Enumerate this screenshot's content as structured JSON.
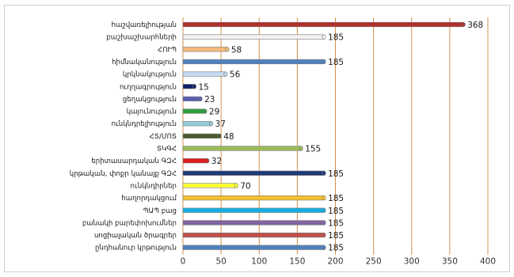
{
  "chart_data": {
    "type": "bar",
    "orientation": "horizontal",
    "title": "",
    "xlabel": "",
    "ylabel": "",
    "xlim": [
      0,
      400
    ],
    "x_ticks": [
      "0",
      "50",
      "100",
      "150",
      "200",
      "250",
      "300",
      "350",
      "400"
    ],
    "grid": "vertical",
    "grid_color": "#d4904a",
    "legend": "none",
    "categories": [
      "հաշվառելիության",
      "բաշխաշխարհների",
      "ՀՈՒՊ",
      "հիմնականություն",
      "կրկնակություն",
      "ուղղագրություն",
      "ցեղակցություն",
      "կայունություն",
      "ունկնդրելիություն",
      "ՀՏ/ՄՈՏ",
      "ՏԿԳՀ",
      "երիտասարդական ԳԶՀ",
      "կրթական, փոքր կանայք ԳԶՀ",
      "ունկնդիրներ",
      "հաղորդակցում",
      "ՊԱՊ բաց",
      "բանակի բարեփոխումներ",
      "սոցիալական ծրագրեր",
      "ընդհանուր կրթություն"
    ],
    "values": [
      368,
      185,
      58,
      185,
      56,
      15,
      23,
      29,
      37,
      48,
      155,
      32,
      185,
      70,
      185,
      185,
      185,
      185,
      185
    ],
    "value_labels": [
      "368",
      "185",
      "58",
      "185",
      "56",
      "15",
      "23",
      "29",
      "37",
      "48",
      "155",
      "32",
      "185",
      "70",
      "185",
      "185",
      "185",
      "185",
      "185"
    ],
    "colors": [
      "#b0302c",
      "#f3f3f3",
      "#f5b97a",
      "#4f81bd",
      "#c6d9f1",
      "#10206a",
      "#5b5fb0",
      "#2e9e3e",
      "#93cddd",
      "#4a5a2c",
      "#9bbb59",
      "#e01b1b",
      "#1f3a78",
      "#ffff33",
      "#f7c230",
      "#17b0e0",
      "#8064a2",
      "#c0504d",
      "#4f81bd"
    ]
  }
}
